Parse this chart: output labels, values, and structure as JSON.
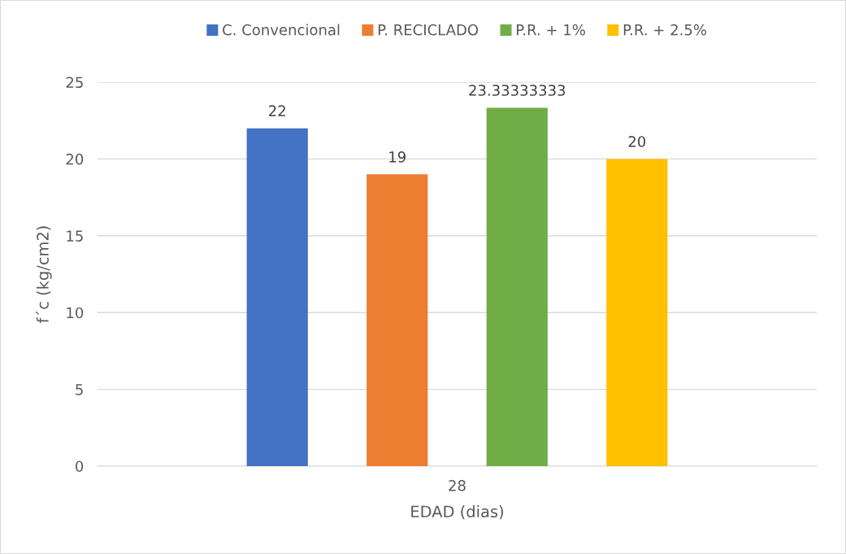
{
  "chart_data": {
    "type": "bar",
    "xlabel": "EDAD (dias)",
    "ylabel": "f´c (kg/cm2)",
    "categories": [
      "28"
    ],
    "series": [
      {
        "name": "C. Convencional",
        "color": "#4472c4",
        "values": [
          22
        ]
      },
      {
        "name": "P. RECICLADO",
        "color": "#ed7d31",
        "values": [
          19
        ]
      },
      {
        "name": "P.R. + 1%",
        "color": "#70ad47",
        "values": [
          23.33333333
        ]
      },
      {
        "name": "P.R. + 2.5%",
        "color": "#ffc000",
        "values": [
          20
        ]
      }
    ],
    "ylim": [
      0,
      25
    ],
    "yticks": [
      0,
      5,
      10,
      15,
      20,
      25
    ],
    "grid": "y",
    "legend": "top",
    "data_labels": true
  }
}
